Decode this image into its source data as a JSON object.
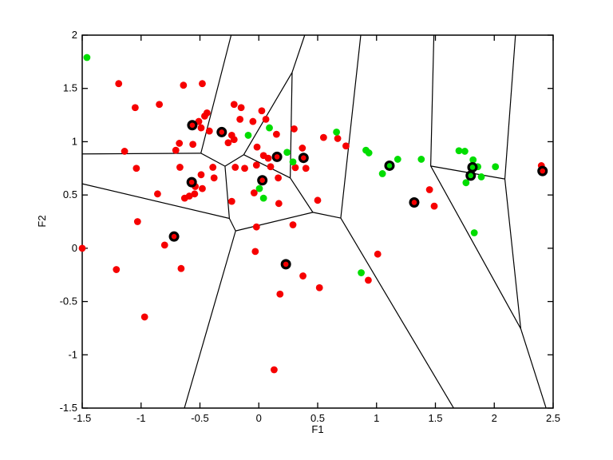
{
  "figure": {
    "background": "#ffffff",
    "axes_color": "#000000",
    "red": "#f60000",
    "green": "#00dd00",
    "ring": "#000000"
  },
  "chart_data": {
    "type": "scatter",
    "title": "",
    "xlabel": "F1",
    "ylabel": "F2",
    "xlim": [
      -1.5,
      2.5
    ],
    "ylim": [
      -1.5,
      2
    ],
    "xticks": [
      -1.5,
      -1,
      -0.5,
      0,
      0.5,
      1,
      1.5,
      2,
      2.5
    ],
    "yticks": [
      -1.5,
      -1,
      -0.5,
      0,
      0.5,
      1,
      1.5,
      2
    ],
    "grid": false,
    "legend": null,
    "series": [
      {
        "name": "class-red-samples",
        "marker": "dot",
        "color": "#f60000",
        "points": [
          [
            -1.19,
            1.545
          ],
          [
            -0.64,
            1.53
          ],
          [
            -0.48,
            1.545
          ],
          [
            -1.05,
            1.32
          ],
          [
            -0.845,
            1.35
          ],
          [
            -0.44,
            1.27
          ],
          [
            -0.46,
            1.24
          ],
          [
            -0.51,
            1.19
          ],
          [
            -0.49,
            1.13
          ],
          [
            -0.42,
            1.1
          ],
          [
            -0.21,
            1.35
          ],
          [
            -0.15,
            1.32
          ],
          [
            -0.16,
            1.21
          ],
          [
            -0.23,
            1.06
          ],
          [
            -0.21,
            1.02
          ],
          [
            -0.26,
            0.99
          ],
          [
            -0.675,
            0.985
          ],
          [
            -0.56,
            0.975
          ],
          [
            -0.705,
            0.92
          ],
          [
            -1.14,
            0.91
          ],
          [
            0.025,
            1.29
          ],
          [
            0.06,
            1.21
          ],
          [
            -0.05,
            1.19
          ],
          [
            0.15,
            1.07
          ],
          [
            0.3,
            1.12
          ],
          [
            -0.015,
            0.95
          ],
          [
            0.37,
            0.94
          ],
          [
            0.04,
            0.87
          ],
          [
            0.08,
            0.845
          ],
          [
            0.55,
            1.04
          ],
          [
            0.67,
            1.03
          ],
          [
            0.74,
            0.96
          ],
          [
            -1.04,
            0.75
          ],
          [
            -0.67,
            0.76
          ],
          [
            -0.49,
            0.69
          ],
          [
            -0.39,
            0.76
          ],
          [
            -0.38,
            0.66
          ],
          [
            -0.54,
            0.58
          ],
          [
            -0.48,
            0.56
          ],
          [
            -0.545,
            0.51
          ],
          [
            -0.59,
            0.49
          ],
          [
            -0.63,
            0.47
          ],
          [
            -0.86,
            0.51
          ],
          [
            -0.23,
            0.44
          ],
          [
            -1.03,
            0.25
          ],
          [
            -0.8,
            0.03
          ],
          [
            -1.5,
            0.0
          ],
          [
            -1.21,
            -0.2
          ],
          [
            -0.66,
            -0.19
          ],
          [
            -0.2,
            0.76
          ],
          [
            -0.12,
            0.75
          ],
          [
            -0.02,
            0.78
          ],
          [
            0.1,
            0.765
          ],
          [
            0.31,
            0.757
          ],
          [
            0.4,
            0.75
          ],
          [
            0.165,
            0.66
          ],
          [
            -0.04,
            0.52
          ],
          [
            0.17,
            0.42
          ],
          [
            0.5,
            0.45
          ],
          [
            0.29,
            0.22
          ],
          [
            -0.02,
            0.2
          ],
          [
            -0.03,
            -0.03
          ],
          [
            0.375,
            -0.26
          ],
          [
            0.515,
            -0.37
          ],
          [
            1.01,
            -0.055
          ],
          [
            0.93,
            -0.3
          ],
          [
            2.4,
            0.775
          ],
          [
            1.45,
            0.55
          ],
          [
            1.49,
            0.395
          ],
          [
            -0.97,
            -0.645
          ],
          [
            0.18,
            -0.43
          ],
          [
            0.13,
            -1.14
          ]
        ]
      },
      {
        "name": "class-green-samples",
        "marker": "dot",
        "color": "#00dd00",
        "points": [
          [
            -1.46,
            1.79
          ],
          [
            0.09,
            1.13
          ],
          [
            -0.09,
            1.06
          ],
          [
            0.24,
            0.9
          ],
          [
            0.29,
            0.81
          ],
          [
            0.66,
            1.09
          ],
          [
            0.91,
            0.92
          ],
          [
            0.935,
            0.895
          ],
          [
            1.18,
            0.835
          ],
          [
            1.38,
            0.835
          ],
          [
            1.05,
            0.7
          ],
          [
            0.005,
            0.56
          ],
          [
            0.04,
            0.47
          ],
          [
            1.7,
            0.915
          ],
          [
            1.75,
            0.91
          ],
          [
            1.82,
            0.83
          ],
          [
            1.86,
            0.765
          ],
          [
            2.01,
            0.765
          ],
          [
            1.89,
            0.67
          ],
          [
            1.76,
            0.615
          ],
          [
            1.83,
            0.145
          ],
          [
            0.87,
            -0.23
          ]
        ]
      },
      {
        "name": "codebook-red-prototypes",
        "marker": "circled-dot",
        "color": "#f60000",
        "ring": "#000000",
        "points": [
          [
            -0.565,
            1.155
          ],
          [
            -0.315,
            1.09
          ],
          [
            0.155,
            0.858
          ],
          [
            0.38,
            0.848
          ],
          [
            0.03,
            0.638
          ],
          [
            -0.57,
            0.62
          ],
          [
            -0.72,
            0.11
          ],
          [
            0.23,
            -0.15
          ],
          [
            1.32,
            0.43
          ],
          [
            2.41,
            0.725
          ]
        ]
      },
      {
        "name": "codebook-green-prototypes",
        "marker": "circled-dot",
        "color": "#00dd00",
        "ring": "#000000",
        "points": [
          [
            1.11,
            0.775
          ],
          [
            1.815,
            0.76
          ],
          [
            1.8,
            0.682
          ]
        ]
      }
    ],
    "voronoi_edges": [
      [
        [
          -1.5,
          0.885
        ],
        [
          -0.492,
          0.892
        ]
      ],
      [
        [
          -0.492,
          0.892
        ],
        [
          -0.235,
          2.0
        ]
      ],
      [
        [
          -0.492,
          0.892
        ],
        [
          -0.287,
          0.77
        ]
      ],
      [
        [
          -0.287,
          0.77
        ],
        [
          -0.25,
          0.28
        ]
      ],
      [
        [
          -0.287,
          0.77
        ],
        [
          -0.128,
          0.878
        ]
      ],
      [
        [
          -0.128,
          0.878
        ],
        [
          0.283,
          1.65
        ]
      ],
      [
        [
          0.283,
          1.65
        ],
        [
          0.39,
          2.0
        ]
      ],
      [
        [
          0.283,
          1.65
        ],
        [
          0.267,
          0.66
        ]
      ],
      [
        [
          -0.128,
          0.878
        ],
        [
          0.267,
          0.66
        ]
      ],
      [
        [
          0.267,
          0.66
        ],
        [
          0.459,
          0.337
        ]
      ],
      [
        [
          -1.5,
          0.605
        ],
        [
          -0.25,
          0.28
        ]
      ],
      [
        [
          -0.25,
          0.28
        ],
        [
          -0.197,
          0.163
        ]
      ],
      [
        [
          -0.197,
          0.163
        ],
        [
          -0.632,
          -1.5
        ]
      ],
      [
        [
          -0.197,
          0.163
        ],
        [
          0.459,
          0.337
        ]
      ],
      [
        [
          0.459,
          0.337
        ],
        [
          0.696,
          0.283
        ]
      ],
      [
        [
          0.696,
          0.283
        ],
        [
          0.866,
          2.0
        ]
      ],
      [
        [
          0.696,
          0.283
        ],
        [
          1.655,
          -1.5
        ]
      ],
      [
        [
          1.487,
          2.0
        ],
        [
          1.46,
          0.772
        ]
      ],
      [
        [
          1.46,
          0.772
        ],
        [
          2.09,
          0.65
        ]
      ],
      [
        [
          1.46,
          0.772
        ],
        [
          2.225,
          -0.755
        ]
      ],
      [
        [
          2.18,
          2.0
        ],
        [
          2.09,
          0.65
        ]
      ],
      [
        [
          2.09,
          0.65
        ],
        [
          2.225,
          -0.755
        ]
      ],
      [
        [
          2.225,
          -0.755
        ],
        [
          2.44,
          -1.5
        ]
      ]
    ]
  }
}
